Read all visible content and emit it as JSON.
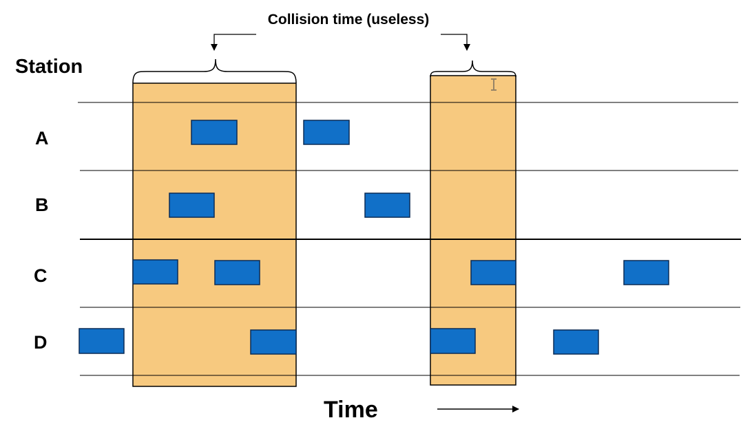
{
  "caption": "Collision time (useless)",
  "axis_title": "Station",
  "time_label": "Time",
  "stations": [
    {
      "label": "A"
    },
    {
      "label": "B"
    },
    {
      "label": "C"
    },
    {
      "label": "D"
    }
  ],
  "colors": {
    "frame_fill": "#1170C8",
    "frame_stroke": "#0B2B55",
    "collision_fill": "#F7C97F",
    "line": "#000000",
    "cursor_icon": "#555555"
  },
  "icons": [
    "text-cursor-icon",
    "right-arrow-icon",
    "down-arrow-icon",
    "curly-brace-icon"
  ]
}
